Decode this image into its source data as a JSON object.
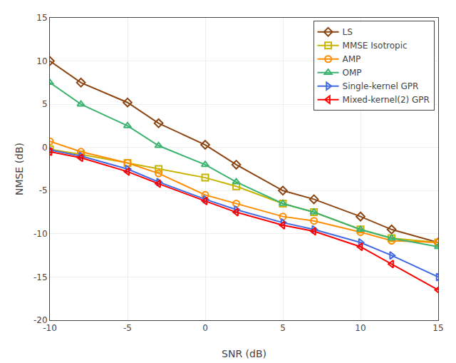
{
  "chart_data": {
    "type": "line",
    "x": [
      -10,
      -8,
      -5,
      -3,
      0,
      2,
      5,
      7,
      10,
      12,
      15
    ],
    "series": [
      {
        "name": "LS",
        "color": "#8B4513",
        "marker": "diamond",
        "values": [
          10.0,
          7.5,
          5.2,
          2.8,
          0.3,
          -2.0,
          -5.0,
          -6.0,
          -8.0,
          -9.5,
          -11.0
        ]
      },
      {
        "name": "MMSE Isotropic",
        "color": "#C8B400",
        "marker": "square",
        "values": [
          -0.2,
          -0.8,
          -1.8,
          -2.5,
          -3.5,
          -4.5,
          -6.5,
          -7.5,
          -9.5,
          -10.5,
          -11.0
        ]
      },
      {
        "name": "AMP",
        "color": "#FF8C00",
        "marker": "circle",
        "values": [
          0.7,
          -0.5,
          -1.8,
          -3.0,
          -5.5,
          -6.5,
          -8.0,
          -8.5,
          -9.8,
          -10.8,
          -11.0
        ]
      },
      {
        "name": "OMP",
        "color": "#3CB371",
        "marker": "triangle-up",
        "values": [
          7.5,
          5.0,
          2.5,
          0.2,
          -2.0,
          -4.0,
          -6.5,
          -7.5,
          -9.5,
          -10.5,
          -11.5
        ]
      },
      {
        "name": "Single-kernel GPR",
        "color": "#4169E1",
        "marker": "triangle-right",
        "values": [
          -0.3,
          -1.0,
          -2.5,
          -4.0,
          -6.0,
          -7.2,
          -8.7,
          -9.5,
          -11.0,
          -12.5,
          -15.0
        ]
      },
      {
        "name": "Mixed-kernel(2) GPR",
        "color": "#FF0000",
        "marker": "triangle-left",
        "values": [
          -0.5,
          -1.2,
          -2.8,
          -4.2,
          -6.2,
          -7.5,
          -9.0,
          -9.7,
          -11.5,
          -13.5,
          -16.5
        ]
      }
    ],
    "xlabel": "SNR (dB)",
    "ylabel": "NMSE (dB)",
    "xlim": [
      -10,
      15
    ],
    "ylim": [
      -20,
      15
    ],
    "xticks": [
      -10,
      -5,
      0,
      5,
      10,
      15
    ],
    "yticks": [
      -20,
      -15,
      -10,
      -5,
      0,
      5,
      10,
      15
    ],
    "grid": true,
    "legend": "upper right"
  }
}
